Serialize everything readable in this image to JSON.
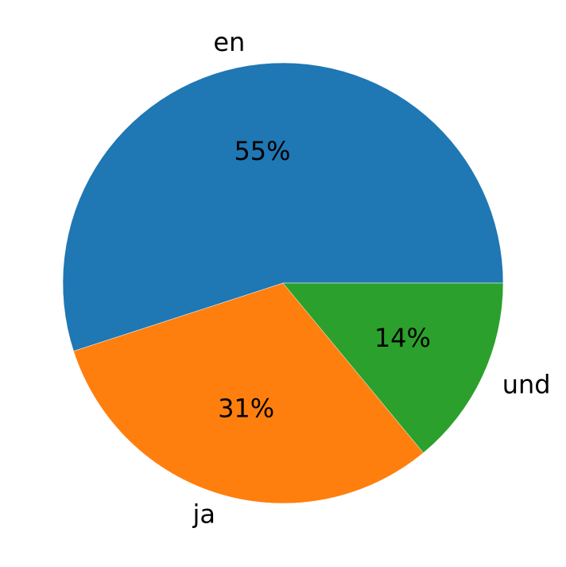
{
  "chart_data": {
    "type": "pie",
    "labels": [
      "en",
      "ja",
      "und"
    ],
    "values": [
      55,
      31,
      14
    ],
    "value_labels": [
      "55%",
      "31%",
      "14%"
    ],
    "colors": [
      "#1f77b4",
      "#ff7f0e",
      "#2ca02c"
    ],
    "start_angle_deg": 0,
    "direction": "counterclockwise",
    "legend": "none",
    "grid": false
  }
}
